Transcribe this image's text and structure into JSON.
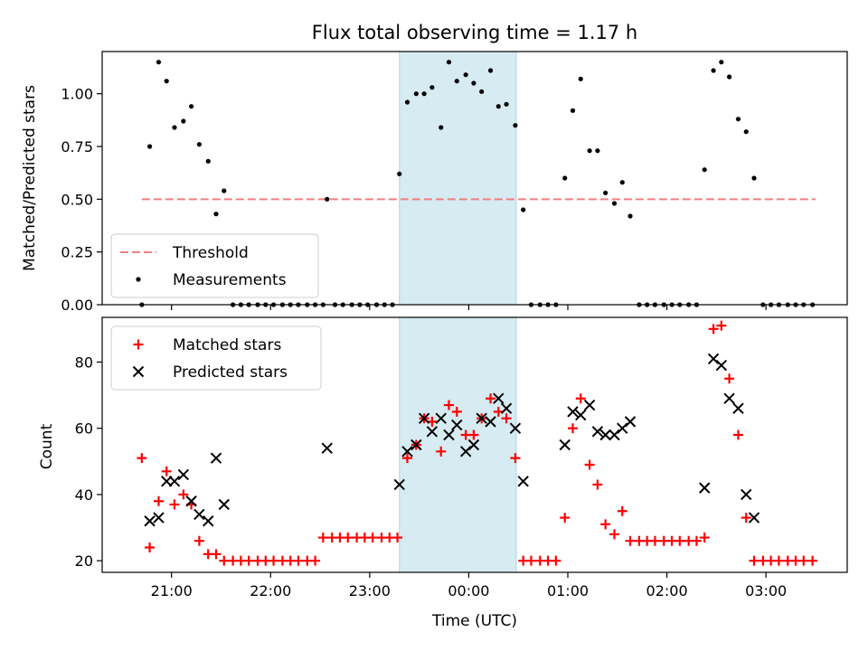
{
  "title": "Flux total observing time = 1.17 h",
  "chart_data": [
    {
      "type": "scatter",
      "ylabel": "Matched/Predicted stars",
      "xlabel": "",
      "x_unit": "hours from 00:00 UTC",
      "xlim": [
        -3.7,
        3.82
      ],
      "ylim": [
        0,
        1.2
      ],
      "yticks": [
        0.0,
        0.25,
        0.5,
        0.75,
        1.0
      ],
      "ytick_labels": [
        "0.00",
        "0.25",
        "0.50",
        "0.75",
        "1.00"
      ],
      "shaded_interval": [
        -0.7,
        0.48
      ],
      "legend_position": "lower-left",
      "threshold": {
        "name": "Threshold",
        "y": 0.5,
        "x_range": [
          -3.3,
          3.5
        ],
        "color": "#f08080",
        "style": "dashed"
      },
      "series": [
        {
          "name": "Measurements",
          "marker": "dot",
          "color": "#000000",
          "points": [
            [
              -3.3,
              0.0
            ],
            [
              -3.22,
              0.75
            ],
            [
              -3.13,
              1.15
            ],
            [
              -3.05,
              1.06
            ],
            [
              -2.97,
              0.84
            ],
            [
              -2.88,
              0.87
            ],
            [
              -2.8,
              0.94
            ],
            [
              -2.72,
              0.76
            ],
            [
              -2.63,
              0.68
            ],
            [
              -2.55,
              0.43
            ],
            [
              -2.47,
              0.54
            ],
            [
              -2.38,
              0.0
            ],
            [
              -2.3,
              0.0
            ],
            [
              -2.22,
              0.0
            ],
            [
              -2.13,
              0.0
            ],
            [
              -2.05,
              0.0
            ],
            [
              -1.97,
              0.0
            ],
            [
              -1.88,
              0.0
            ],
            [
              -1.8,
              0.0
            ],
            [
              -1.72,
              0.0
            ],
            [
              -1.63,
              0.0
            ],
            [
              -1.55,
              0.0
            ],
            [
              -1.47,
              0.0
            ],
            [
              -1.43,
              0.5
            ],
            [
              -1.35,
              0.0
            ],
            [
              -1.27,
              0.0
            ],
            [
              -1.18,
              0.0
            ],
            [
              -1.1,
              0.0
            ],
            [
              -1.02,
              0.0
            ],
            [
              -0.93,
              0.0
            ],
            [
              -0.85,
              0.0
            ],
            [
              -0.77,
              0.0
            ],
            [
              -0.7,
              0.62
            ],
            [
              -0.62,
              0.96
            ],
            [
              -0.53,
              1.0
            ],
            [
              -0.45,
              1.0
            ],
            [
              -0.37,
              1.03
            ],
            [
              -0.28,
              0.84
            ],
            [
              -0.2,
              1.15
            ],
            [
              -0.12,
              1.06
            ],
            [
              -0.03,
              1.09
            ],
            [
              0.05,
              1.05
            ],
            [
              0.13,
              1.01
            ],
            [
              0.22,
              1.11
            ],
            [
              0.3,
              0.94
            ],
            [
              0.38,
              0.95
            ],
            [
              0.47,
              0.85
            ],
            [
              0.55,
              0.45
            ],
            [
              0.63,
              0.0
            ],
            [
              0.72,
              0.0
            ],
            [
              0.8,
              0.0
            ],
            [
              0.88,
              0.0
            ],
            [
              0.97,
              0.6
            ],
            [
              1.05,
              0.92
            ],
            [
              1.13,
              1.07
            ],
            [
              1.22,
              0.73
            ],
            [
              1.3,
              0.73
            ],
            [
              1.38,
              0.53
            ],
            [
              1.47,
              0.48
            ],
            [
              1.55,
              0.58
            ],
            [
              1.63,
              0.42
            ],
            [
              1.72,
              0.0
            ],
            [
              1.8,
              0.0
            ],
            [
              1.88,
              0.0
            ],
            [
              1.97,
              0.0
            ],
            [
              2.05,
              0.0
            ],
            [
              2.13,
              0.0
            ],
            [
              2.22,
              0.0
            ],
            [
              2.3,
              0.0
            ],
            [
              2.38,
              0.64
            ],
            [
              2.47,
              1.11
            ],
            [
              2.55,
              1.15
            ],
            [
              2.63,
              1.08
            ],
            [
              2.72,
              0.88
            ],
            [
              2.8,
              0.82
            ],
            [
              2.88,
              0.6
            ],
            [
              2.97,
              0.0
            ],
            [
              3.05,
              0.0
            ],
            [
              3.13,
              0.0
            ],
            [
              3.22,
              0.0
            ],
            [
              3.3,
              0.0
            ],
            [
              3.38,
              0.0
            ],
            [
              3.47,
              0.0
            ]
          ]
        }
      ]
    },
    {
      "type": "scatter",
      "ylabel": "Count",
      "xlabel": "Time (UTC)",
      "x_unit": "hours from 00:00 UTC",
      "xlim": [
        -3.7,
        3.82
      ],
      "ylim": [
        16.5,
        93.5
      ],
      "yticks": [
        20,
        40,
        60,
        80
      ],
      "ytick_labels": [
        "20",
        "40",
        "60",
        "80"
      ],
      "xticks": [
        -3,
        -2,
        -1,
        0,
        1,
        2,
        3
      ],
      "xtick_labels": [
        "21:00",
        "22:00",
        "23:00",
        "00:00",
        "01:00",
        "02:00",
        "03:00"
      ],
      "shaded_interval": [
        -0.7,
        0.48
      ],
      "legend_position": "upper-left",
      "series": [
        {
          "name": "Matched stars",
          "marker": "plus",
          "color": "#ff0000",
          "points": [
            [
              -3.3,
              51
            ],
            [
              -3.22,
              24
            ],
            [
              -3.13,
              38
            ],
            [
              -3.05,
              47
            ],
            [
              -2.97,
              37
            ],
            [
              -2.88,
              40
            ],
            [
              -2.8,
              37
            ],
            [
              -2.72,
              26
            ],
            [
              -2.63,
              22
            ],
            [
              -2.55,
              22
            ],
            [
              -2.47,
              20
            ],
            [
              -2.38,
              20
            ],
            [
              -2.3,
              20
            ],
            [
              -2.22,
              20
            ],
            [
              -2.13,
              20
            ],
            [
              -2.05,
              20
            ],
            [
              -1.97,
              20
            ],
            [
              -1.88,
              20
            ],
            [
              -1.8,
              20
            ],
            [
              -1.72,
              20
            ],
            [
              -1.63,
              20
            ],
            [
              -1.55,
              20
            ],
            [
              -1.47,
              27
            ],
            [
              -1.38,
              27
            ],
            [
              -1.3,
              27
            ],
            [
              -1.22,
              27
            ],
            [
              -1.13,
              27
            ],
            [
              -1.05,
              27
            ],
            [
              -0.97,
              27
            ],
            [
              -0.88,
              27
            ],
            [
              -0.8,
              27
            ],
            [
              -0.72,
              27
            ],
            [
              -0.62,
              51
            ],
            [
              -0.53,
              55
            ],
            [
              -0.45,
              63
            ],
            [
              -0.37,
              62
            ],
            [
              -0.28,
              53
            ],
            [
              -0.2,
              67
            ],
            [
              -0.12,
              65
            ],
            [
              -0.03,
              58
            ],
            [
              0.05,
              58
            ],
            [
              0.13,
              63
            ],
            [
              0.22,
              69
            ],
            [
              0.3,
              65
            ],
            [
              0.38,
              63
            ],
            [
              0.47,
              51
            ],
            [
              0.55,
              20
            ],
            [
              0.63,
              20
            ],
            [
              0.72,
              20
            ],
            [
              0.8,
              20
            ],
            [
              0.88,
              20
            ],
            [
              0.97,
              33
            ],
            [
              1.05,
              60
            ],
            [
              1.13,
              69
            ],
            [
              1.22,
              49
            ],
            [
              1.3,
              43
            ],
            [
              1.38,
              31
            ],
            [
              1.47,
              28
            ],
            [
              1.55,
              35
            ],
            [
              1.63,
              26
            ],
            [
              1.72,
              26
            ],
            [
              1.8,
              26
            ],
            [
              1.88,
              26
            ],
            [
              1.97,
              26
            ],
            [
              2.05,
              26
            ],
            [
              2.13,
              26
            ],
            [
              2.22,
              26
            ],
            [
              2.3,
              26
            ],
            [
              2.38,
              27
            ],
            [
              2.47,
              90
            ],
            [
              2.55,
              91
            ],
            [
              2.63,
              75
            ],
            [
              2.72,
              58
            ],
            [
              2.8,
              33
            ],
            [
              2.88,
              20
            ],
            [
              2.97,
              20
            ],
            [
              3.05,
              20
            ],
            [
              3.13,
              20
            ],
            [
              3.22,
              20
            ],
            [
              3.3,
              20
            ],
            [
              3.38,
              20
            ],
            [
              3.47,
              20
            ]
          ]
        },
        {
          "name": "Predicted stars",
          "marker": "x",
          "color": "#000000",
          "points": [
            [
              -3.22,
              32
            ],
            [
              -3.13,
              33
            ],
            [
              -3.05,
              44
            ],
            [
              -2.97,
              44
            ],
            [
              -2.88,
              46
            ],
            [
              -2.8,
              38
            ],
            [
              -2.72,
              34
            ],
            [
              -2.63,
              32
            ],
            [
              -2.55,
              51
            ],
            [
              -2.47,
              37
            ],
            [
              -1.43,
              54
            ],
            [
              -0.7,
              43
            ],
            [
              -0.62,
              53
            ],
            [
              -0.53,
              55
            ],
            [
              -0.45,
              63
            ],
            [
              -0.37,
              59
            ],
            [
              -0.28,
              63
            ],
            [
              -0.2,
              58
            ],
            [
              -0.12,
              61
            ],
            [
              -0.03,
              53
            ],
            [
              0.05,
              55
            ],
            [
              0.13,
              63
            ],
            [
              0.22,
              62
            ],
            [
              0.3,
              69
            ],
            [
              0.38,
              66
            ],
            [
              0.47,
              60
            ],
            [
              0.55,
              44
            ],
            [
              0.97,
              55
            ],
            [
              1.05,
              65
            ],
            [
              1.13,
              64
            ],
            [
              1.22,
              67
            ],
            [
              1.3,
              59
            ],
            [
              1.38,
              58
            ],
            [
              1.47,
              58
            ],
            [
              1.55,
              60
            ],
            [
              1.63,
              62
            ],
            [
              2.38,
              42
            ],
            [
              2.47,
              81
            ],
            [
              2.55,
              79
            ],
            [
              2.63,
              69
            ],
            [
              2.72,
              66
            ],
            [
              2.8,
              40
            ],
            [
              2.88,
              33
            ]
          ]
        }
      ]
    }
  ]
}
